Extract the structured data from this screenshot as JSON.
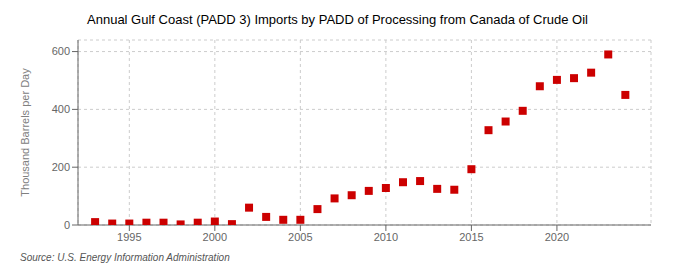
{
  "chart_data": {
    "type": "scatter",
    "title": "Annual Gulf Coast (PADD 3) Imports by PADD of Processing from Canada of Crude Oil",
    "ylabel": "Thousand Barrels per Day",
    "annotations": [
      "Source: U.S. Energy Information Administration"
    ],
    "x": [
      1993,
      1994,
      1995,
      1996,
      1997,
      1998,
      1999,
      2000,
      2001,
      2002,
      2003,
      2004,
      2005,
      2006,
      2007,
      2008,
      2009,
      2010,
      2011,
      2012,
      2013,
      2014,
      2015,
      2016,
      2017,
      2018,
      2019,
      2020,
      2021,
      2022,
      2023,
      2024
    ],
    "values": [
      10,
      5,
      5,
      8,
      8,
      2,
      8,
      12,
      3,
      60,
      28,
      18,
      18,
      55,
      92,
      103,
      118,
      128,
      148,
      152,
      125,
      122,
      193,
      328,
      358,
      395,
      480,
      502,
      508,
      527,
      590,
      450
    ],
    "color": "#cc0000",
    "marker": "square",
    "xlim": [
      1992.0,
      2025.5
    ],
    "xticks": [
      1995,
      2000,
      2005,
      2010,
      2015,
      2020
    ],
    "ylim": [
      0,
      640
    ],
    "yticks": [
      0,
      200,
      400,
      600
    ],
    "grid": true
  }
}
